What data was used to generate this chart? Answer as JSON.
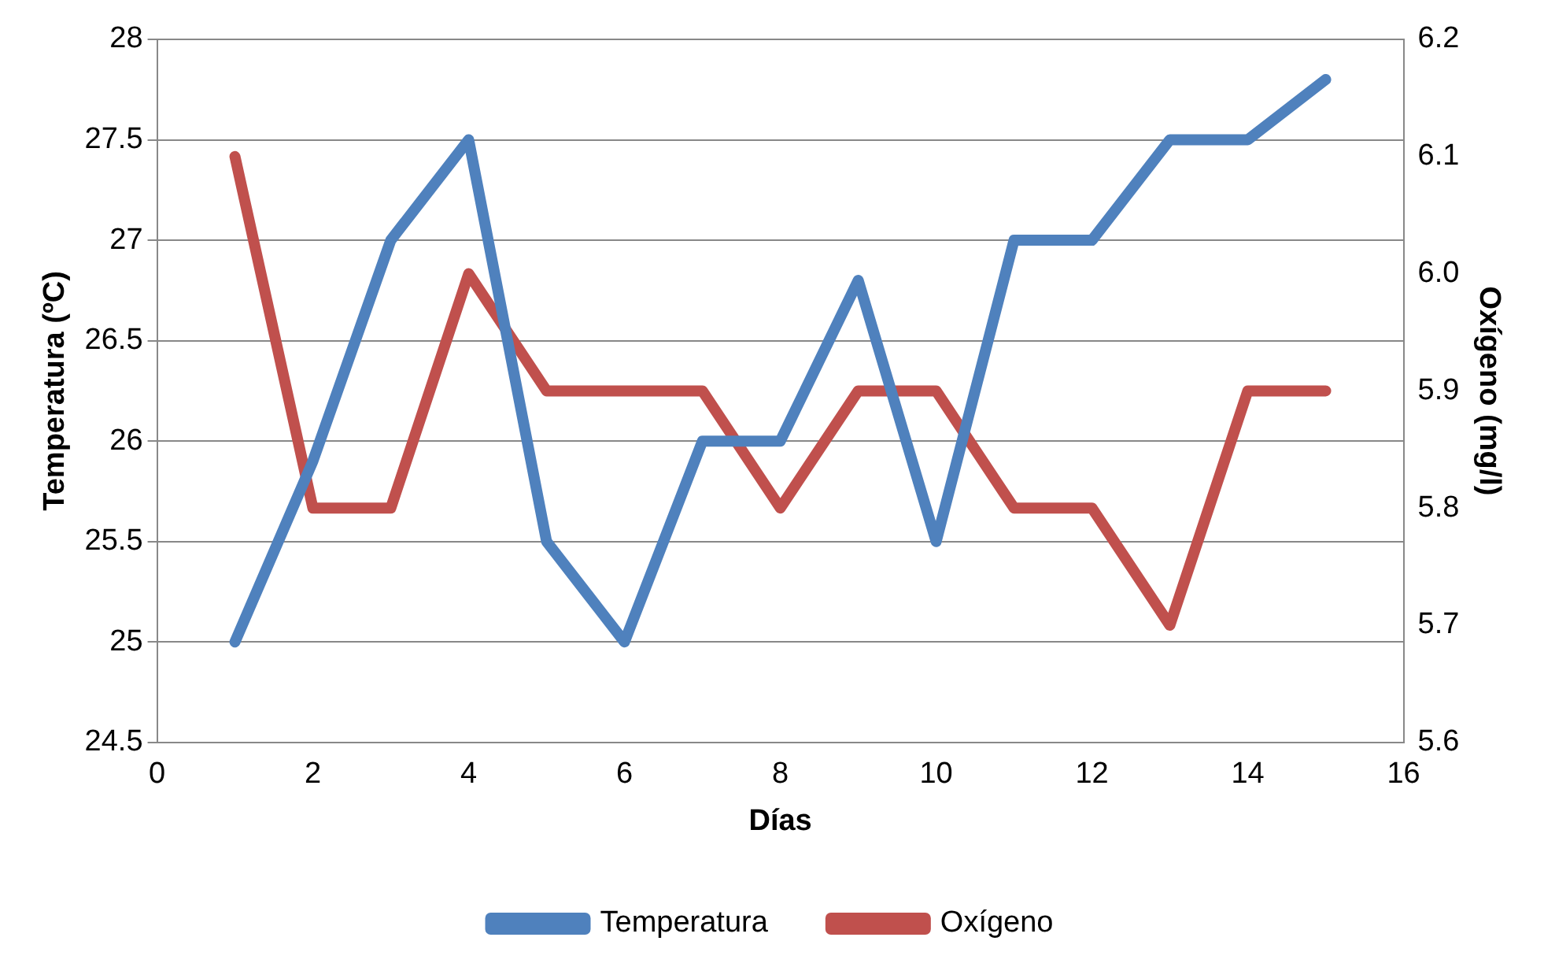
{
  "chart_data": {
    "type": "line",
    "xlabel": "Días",
    "ylabel": "Temperatura (ºC)",
    "y2label": "Oxígeno (mg/l)",
    "x": [
      1,
      2,
      3,
      4,
      5,
      6,
      7,
      8,
      9,
      10,
      11,
      12,
      13,
      14,
      15
    ],
    "series": [
      {
        "name": "Temperatura",
        "color": "#4f81bd",
        "values": [
          25,
          25.9,
          27,
          27.5,
          25.5,
          25,
          26,
          26,
          26.8,
          25.5,
          27,
          27,
          27.5,
          27.5,
          27.8
        ]
      },
      {
        "name": "Oxígeno",
        "color": "#c0504d",
        "axis": "y2",
        "values": [
          6.1,
          5.8,
          5.8,
          6.0,
          5.9,
          5.9,
          5.9,
          5.8,
          5.9,
          5.9,
          5.8,
          5.8,
          5.7,
          5.9,
          5.9
        ]
      }
    ],
    "xlim": [
      0,
      16
    ],
    "xticks": [
      0,
      2,
      4,
      6,
      8,
      10,
      12,
      14,
      16
    ],
    "ylim": [
      24.5,
      28
    ],
    "yticks": [
      24.5,
      25,
      25.5,
      26,
      26.5,
      27,
      27.5,
      28
    ],
    "y2lim": [
      5.6,
      6.2
    ],
    "y2ticks": [
      5.6,
      5.7,
      5.8,
      5.9,
      {
        "value": 6,
        "label": "6.0"
      },
      6.1,
      6.2
    ],
    "grid": "y",
    "legend": "bottom",
    "marker": "none",
    "line_style": "solid"
  }
}
